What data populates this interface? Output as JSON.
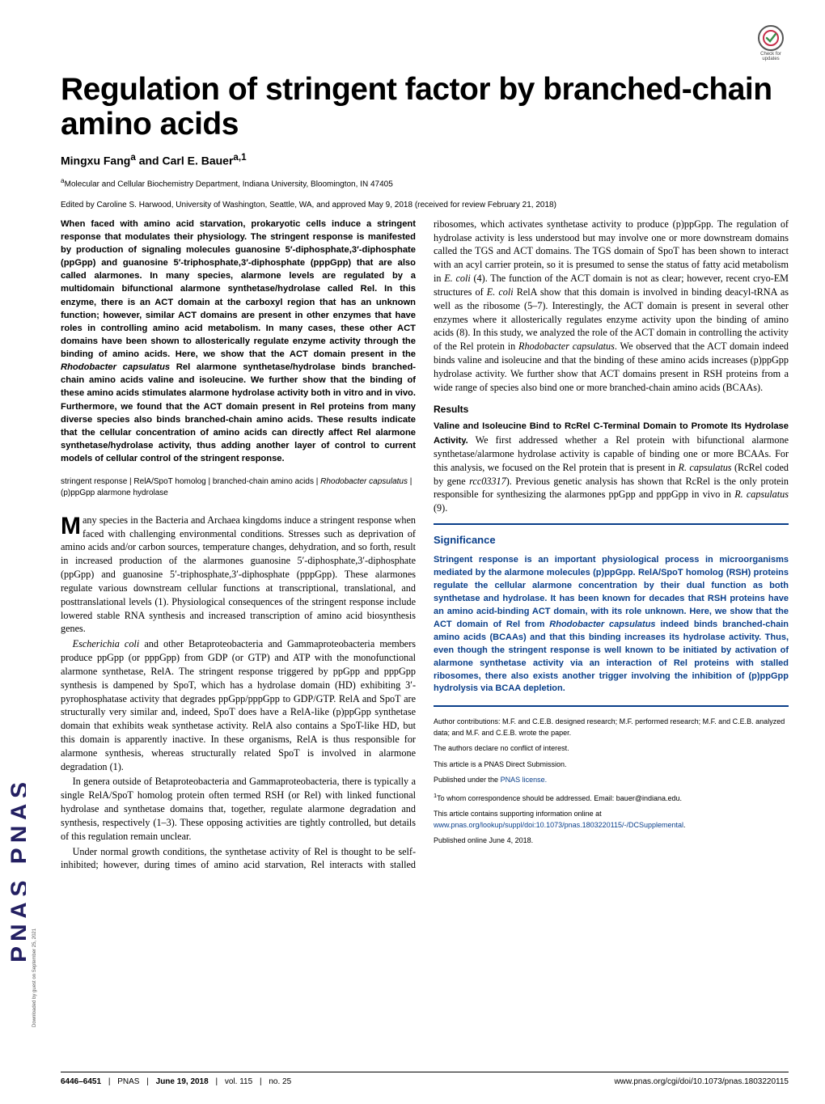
{
  "journal_band": "PNAS   PNAS",
  "download_note": "Downloaded by guest on September 25, 2021",
  "crossmark_label": "Check for updates",
  "title": "Regulation of stringent factor by branched-chain amino acids",
  "authors_html": "Mingxu Fang<sup>a</sup> and Carl E. Bauer<sup>a,1</sup>",
  "affiliation_html": "<sup>a</sup>Molecular and Cellular Biochemistry Department, Indiana University, Bloomington, IN 47405",
  "edited": "Edited by Caroline S. Harwood, University of Washington, Seattle, WA, and approved May 9, 2018 (received for review February 21, 2018)",
  "abstract": "When faced with amino acid starvation, prokaryotic cells induce a stringent response that modulates their physiology. The stringent response is manifested by production of signaling molecules guanosine 5′-diphosphate,3′-diphosphate (ppGpp) and guanosine 5′-triphosphate,3′-diphosphate (pppGpp) that are also called alarmones. In many species, alarmone levels are regulated by a multidomain bifunctional alarmone synthetase/hydrolase called Rel. In this enzyme, there is an ACT domain at the carboxyl region that has an unknown function; however, similar ACT domains are present in other enzymes that have roles in controlling amino acid metabolism. In many cases, these other ACT domains have been shown to allosterically regulate enzyme activity through the binding of amino acids. Here, we show that the ACT domain present in the <span class='italic'>Rhodobacter capsulatus</span> Rel alarmone synthetase/hydrolase binds branched-chain amino acids valine and isoleucine. We further show that the binding of these amino acids stimulates alarmone hydrolase activity both in vitro and in vivo. Furthermore, we found that the ACT domain present in Rel proteins from many diverse species also binds branched-chain amino acids. These results indicate that the cellular concentration of amino acids can directly affect Rel alarmone synthetase/hydrolase activity, thus adding another layer of control to current models of cellular control of the stringent response.",
  "keywords": "stringent response | RelA/SpoT homolog | branched-chain amino acids | <span class='italic'>Rhodobacter capsulatus</span> | (p)ppGpp alarmone hydrolase",
  "body": {
    "p1": "Many species in the Bacteria and Archaea kingdoms induce a stringent response when faced with challenging environmental conditions. Stresses such as deprivation of amino acids and/or carbon sources, temperature changes, dehydration, and so forth, result in increased production of the alarmones guanosine 5′-diphosphate,3′-diphosphate (ppGpp) and guanosine 5′-triphosphate,3′-diphosphate (pppGpp). These alarmones regulate various downstream cellular functions at transcriptional, translational, and posttranslational levels (1). Physiological consequences of the stringent response include lowered stable RNA synthesis and increased transcription of amino acid biosynthesis genes.",
    "p2": "<span class='italic'>Escherichia coli</span> and other Betaproteobacteria and Gammaproteobacteria members produce ppGpp (or pppGpp) from GDP (or GTP) and ATP with the monofunctional alarmone synthetase, RelA. The stringent response triggered by ppGpp and pppGpp synthesis is dampened by SpoT, which has a hydrolase domain (HD) exhibiting 3′-pyrophosphatase activity that degrades ppGpp/pppGpp to GDP/GTP. RelA and SpoT are structurally very similar and, indeed, SpoT does have a RelA-like (p)ppGpp synthetase domain that exhibits weak synthetase activity. RelA also contains a SpoT-like HD, but this domain is apparently inactive. In these organisms, RelA is thus responsible for alarmone synthesis, whereas structurally related SpoT is involved in alarmone degradation (1).",
    "p3": "In genera outside of Betaproteobacteria and Gammaproteobacteria, there is typically a single RelA/SpoT homolog protein often termed RSH (or Rel) with linked functional hydrolase and synthetase domains that, together, regulate alarmone degradation and synthesis, respectively (1–3). These opposing activities are tightly controlled, but details of this regulation remain unclear.",
    "p4": "Under normal growth conditions, the synthetase activity of Rel is thought to be self-inhibited; however, during times of amino acid starvation, Rel interacts with stalled ribosomes, which activates synthetase activity to produce (p)ppGpp. The regulation of hydrolase activity is less understood but may involve one or more downstream domains called the TGS and ACT domains. The TGS domain of SpoT has been shown to interact with an acyl carrier protein, so it is presumed to sense the status of fatty acid metabolism in <span class='italic'>E. coli</span> (4). The function of the ACT domain is not as clear; however, recent cryo-EM structures of <span class='italic'>E. coli</span> RelA show that this domain is involved in binding deacyl-tRNA as well as the ribosome (5–7). Interestingly, the ACT domain is present in several other enzymes where it allosterically regulates enzyme activity upon the binding of amino acids (8). In this study, we analyzed the role of the ACT domain in controlling the activity of the Rel protein in <span class='italic'>Rhodobacter capsulatus</span>. We observed that the ACT domain indeed binds valine and isoleucine and that the binding of these amino acids increases (p)ppGpp hydrolase activity. We further show that ACT domains present in RSH proteins from a wide range of species also bind one or more branched-chain amino acids (BCAAs)."
  },
  "results_heading": "Results",
  "subheading": "Valine and Isoleucine Bind to RcRel C-Terminal Domain to Promote Its Hydrolase Activity.",
  "results_p1": " We first addressed whether a Rel protein with bifunctional alarmone synthetase/alarmone hydrolase activity is capable of binding one or more BCAAs. For this analysis, we focused on the Rel protein that is present in <span class='italic'>R. capsulatus</span> (RcRel coded by gene <span class='italic'>rcc03317</span>). Previous genetic analysis has shown that RcRel is the only protein responsible for synthesizing the alarmones ppGpp and pppGpp in vivo in <span class='italic'>R. capsulatus</span> (9).",
  "significance": {
    "title": "Significance",
    "body": "Stringent response is an important physiological process in microorganisms mediated by the alarmone molecules (p)ppGpp. RelA/SpoT homolog (RSH) proteins regulate the cellular alarmone concentration by their dual function as both synthetase and hydrolase. It has been known for decades that RSH proteins have an amino acid-binding ACT domain, with its role unknown. Here, we show that the ACT domain of Rel from <span class='italic'>Rhodobacter capsulatus</span> indeed binds branched-chain amino acids (BCAAs) and that this binding increases its hydrolase activity. Thus, even though the stringent response is well known to be initiated by activation of alarmone synthetase activity via an interaction of Rel proteins with stalled ribosomes, there also exists another trigger involving the inhibition of (p)ppGpp hydrolysis via BCAA depletion."
  },
  "author_info": {
    "contrib": "Author contributions: M.F. and C.E.B. designed research; M.F. performed research; M.F. and C.E.B. analyzed data; and M.F. and C.E.B. wrote the paper.",
    "coi": "The authors declare no conflict of interest.",
    "direct": "This article is a PNAS Direct Submission.",
    "license_pre": "Published under the ",
    "license_link": "PNAS license.",
    "corr_pre": "1",
    "corr": "To whom correspondence should be addressed. Email: bauer@indiana.edu.",
    "si_pre": "This article contains supporting information online at ",
    "si_link": "www.pnas.org/lookup/suppl/doi:10.1073/pnas.1803220115/-/DCSupplemental",
    "pub": "Published online June 4, 2018."
  },
  "footer": {
    "pages": "6446–6451",
    "journal": "PNAS",
    "date": "June 19, 2018",
    "vol": "vol. 115",
    "no": "no. 25",
    "doi": "www.pnas.org/cgi/doi/10.1073/pnas.1803220115"
  }
}
